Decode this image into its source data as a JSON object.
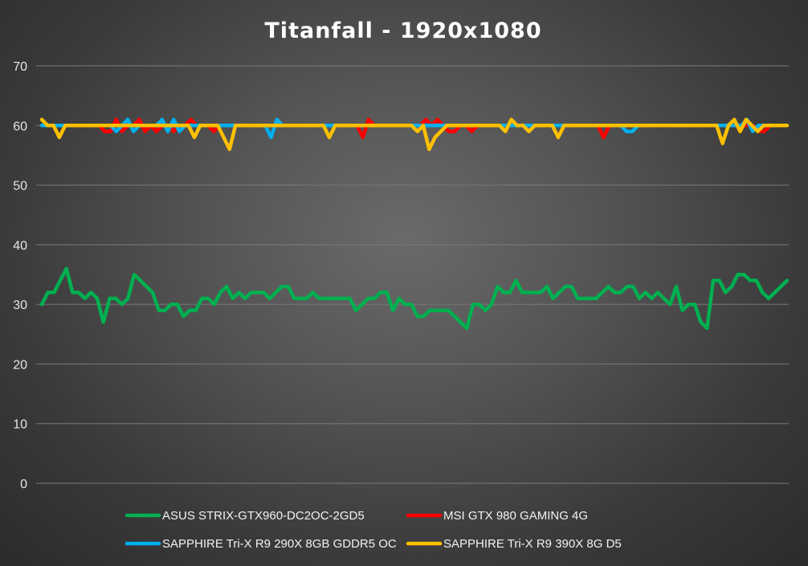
{
  "chart_data": {
    "type": "line",
    "title": "Titanfall - 1920x1080",
    "xlabel": "",
    "ylabel": "",
    "ylim": [
      0,
      70
    ],
    "yticks": [
      0,
      10,
      20,
      30,
      40,
      50,
      60,
      70
    ],
    "grid": true,
    "legend_position": "bottom",
    "series": [
      {
        "name": "ASUS STRIX-GTX960-DC2OC-2GD5",
        "color": "#00B050",
        "values": [
          30,
          32,
          32,
          34,
          36,
          32,
          32,
          31,
          32,
          31,
          27,
          31,
          31,
          30,
          31,
          35,
          34,
          33,
          32,
          29,
          29,
          30,
          30,
          28,
          29,
          29,
          31,
          31,
          30,
          32,
          33,
          31,
          32,
          31,
          32,
          32,
          32,
          31,
          32,
          33,
          33,
          31,
          31,
          31,
          32,
          31,
          31,
          31,
          31,
          31,
          31,
          29,
          30,
          31,
          31,
          32,
          32,
          29,
          31,
          30,
          30,
          28,
          28,
          29,
          29,
          29,
          29,
          28,
          27,
          26,
          30,
          30,
          29,
          30,
          33,
          32,
          32,
          34,
          32,
          32,
          32,
          32,
          33,
          31,
          32,
          33,
          33,
          31,
          31,
          31,
          31,
          32,
          33,
          32,
          32,
          33,
          33,
          31,
          32,
          31,
          32,
          31,
          30,
          33,
          29,
          30,
          30,
          27,
          26,
          34,
          34,
          32,
          33,
          35,
          35,
          34,
          34,
          32,
          31,
          32,
          33,
          34
        ]
      },
      {
        "name": "MSI GTX 980 GAMING 4G",
        "color": "#FF0000",
        "values": [
          60,
          60,
          60,
          60,
          60,
          60,
          60,
          60,
          60,
          60,
          60,
          59,
          59,
          61,
          59,
          60,
          60,
          61,
          59,
          60,
          59,
          60,
          60,
          59,
          60,
          60,
          61,
          60,
          60,
          60,
          59,
          60,
          60,
          60,
          60,
          60,
          60,
          60,
          60,
          60,
          60,
          60,
          60,
          60,
          60,
          60,
          60,
          60,
          60,
          60,
          60,
          60,
          60,
          60,
          60,
          60,
          58,
          61,
          60,
          60,
          60,
          60,
          60,
          60,
          60,
          60,
          60,
          61,
          60,
          61,
          60,
          59,
          59,
          60,
          60,
          59,
          60,
          60,
          60,
          60,
          60,
          60,
          60,
          60,
          60,
          60,
          60,
          60,
          60,
          60,
          60,
          60,
          60,
          60,
          60,
          60,
          60,
          60,
          58,
          60,
          60,
          60,
          60,
          60,
          60,
          60,
          60,
          60,
          60,
          60,
          60,
          60,
          60,
          60,
          60,
          60,
          60,
          60,
          60,
          60,
          60,
          60,
          60,
          60,
          60,
          59,
          59,
          60,
          60,
          60,
          60
        ]
      },
      {
        "name": "SAPPHIRE Tri-X R9 290X 8GB GDDR5 OC",
        "color": "#00B0F0",
        "values": [
          60,
          60,
          60,
          60,
          60,
          60,
          60,
          60,
          60,
          60,
          60,
          60,
          60,
          59,
          60,
          61,
          59,
          60,
          60,
          60,
          60,
          61,
          59,
          61,
          59,
          60,
          60,
          60,
          60,
          60,
          60,
          60,
          60,
          60,
          60,
          60,
          60,
          60,
          60,
          60,
          58,
          61,
          60,
          60,
          60,
          60,
          60,
          60,
          60,
          60,
          60,
          60,
          60,
          60,
          60,
          60,
          60,
          60,
          60,
          60,
          60,
          60,
          60,
          60,
          60,
          60,
          60,
          60,
          60,
          60,
          60,
          60,
          60,
          60,
          60,
          60,
          60,
          60,
          60,
          60,
          60,
          60,
          60,
          60,
          60,
          60,
          60,
          60,
          60,
          60,
          60,
          60,
          60,
          60,
          60,
          60,
          60,
          60,
          60,
          60,
          60,
          60,
          59,
          59,
          60,
          60,
          60,
          60,
          60,
          60,
          60,
          60,
          60,
          60,
          60,
          60,
          60,
          60,
          60,
          60,
          60,
          60,
          60,
          61,
          59,
          60,
          60,
          60,
          60,
          60,
          60
        ]
      },
      {
        "name": "SAPPHIRE Tri-X R9 390X 8G D5",
        "color": "#FFC000",
        "values": [
          61,
          60,
          60,
          58,
          60,
          60,
          60,
          60,
          60,
          60,
          60,
          60,
          60,
          60,
          60,
          60,
          60,
          60,
          60,
          60,
          60,
          60,
          60,
          60,
          60,
          60,
          58,
          60,
          60,
          60,
          60,
          58,
          56,
          60,
          60,
          60,
          60,
          60,
          60,
          60,
          60,
          60,
          60,
          60,
          60,
          60,
          60,
          60,
          60,
          58,
          60,
          60,
          60,
          60,
          60,
          60,
          60,
          60,
          60,
          60,
          60,
          60,
          60,
          60,
          59,
          60,
          56,
          58,
          59,
          60,
          60,
          60,
          60,
          60,
          60,
          60,
          60,
          60,
          60,
          59,
          61,
          60,
          60,
          59,
          60,
          60,
          60,
          60,
          58,
          60,
          60,
          60,
          60,
          60,
          60,
          60,
          60,
          60,
          60,
          60,
          60,
          60,
          60,
          60,
          60,
          60,
          60,
          60,
          60,
          60,
          60,
          60,
          60,
          60,
          60,
          60,
          57,
          60,
          61,
          59,
          61,
          60,
          59,
          60,
          60,
          60,
          60,
          60
        ]
      }
    ]
  }
}
